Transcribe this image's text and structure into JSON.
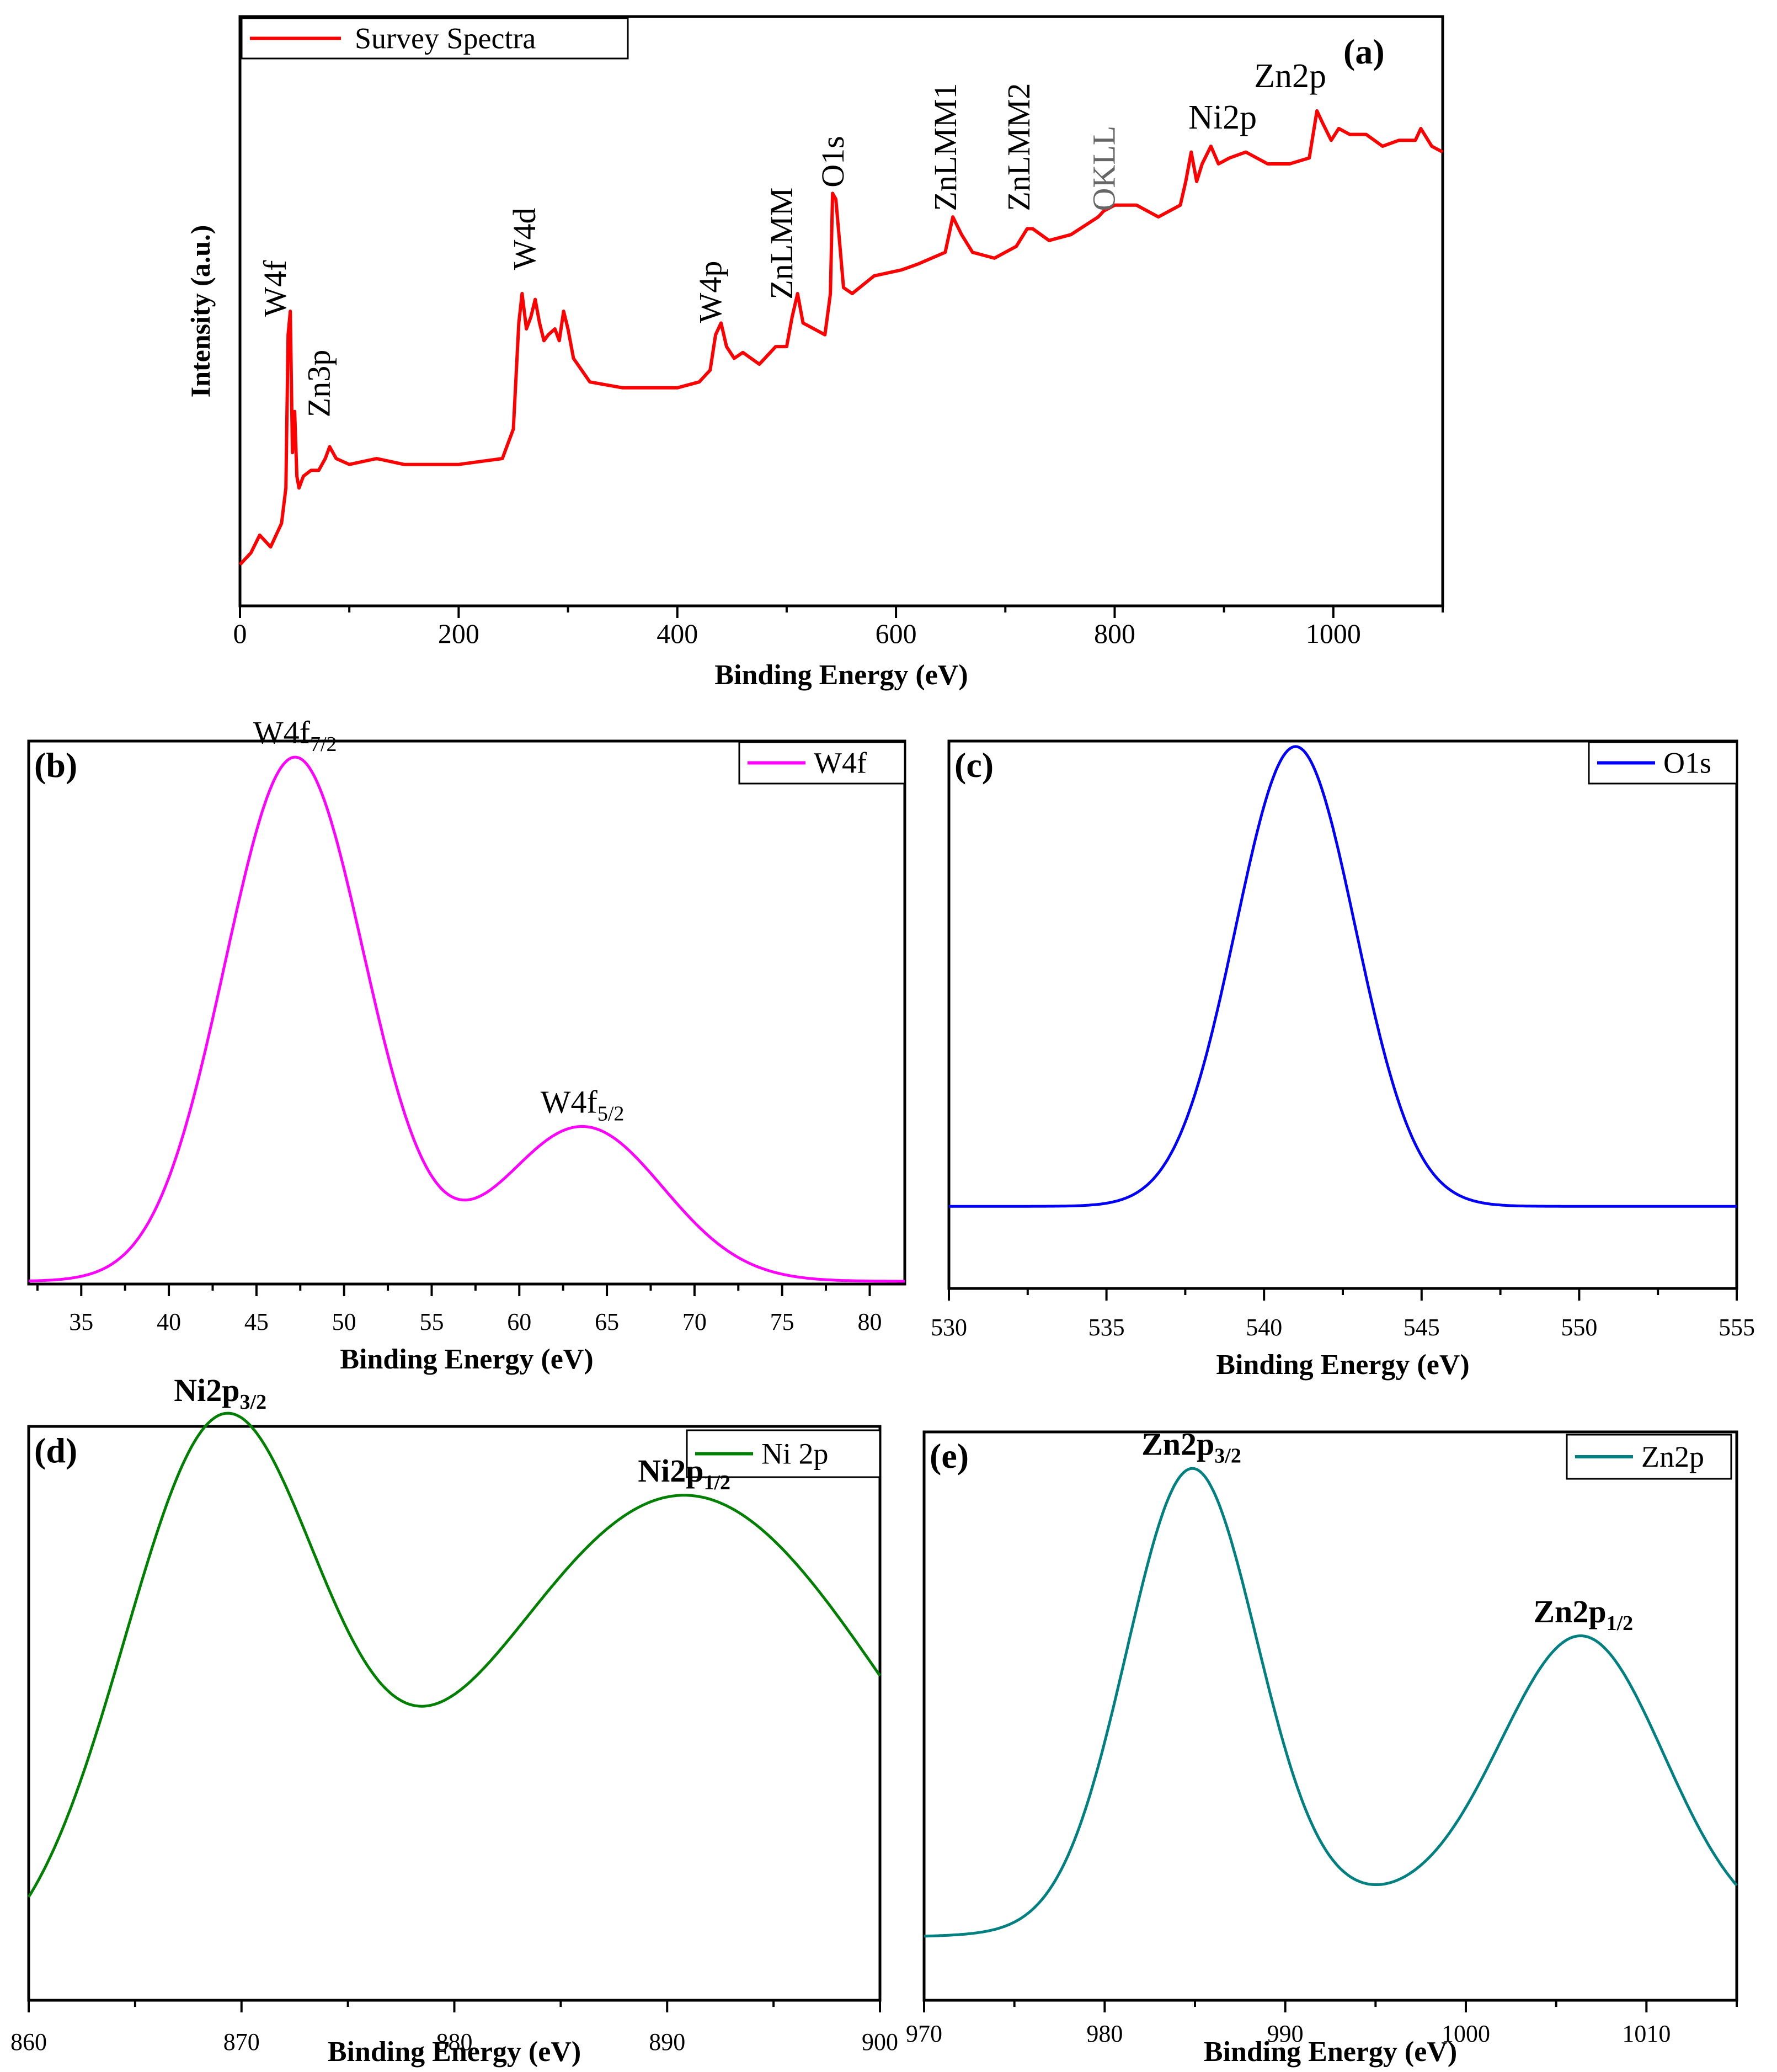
{
  "chart_data": [
    {
      "panel": "(a)",
      "type": "line",
      "title": "",
      "xlabel": "Binding Energy (eV)",
      "ylabel": "Intensity (a.u.)",
      "xlim": [
        0,
        1100
      ],
      "ylim": [
        0,
        1
      ],
      "xticks": [
        "0",
        "200",
        "400",
        "600",
        "800",
        "1000"
      ],
      "legend": {
        "label": "Survey Spectra",
        "position": "top-left"
      },
      "color": "#ff0000",
      "annotations": [
        {
          "text": "W4f",
          "x": 42,
          "y": 0.49,
          "rotate": true
        },
        {
          "text": "Zn3p",
          "x": 82,
          "y": 0.32,
          "rotate": true
        },
        {
          "text": "W4d",
          "x": 270,
          "y": 0.57,
          "rotate": true
        },
        {
          "text": "W4p",
          "x": 440,
          "y": 0.48,
          "rotate": true
        },
        {
          "text": "ZnLMM",
          "x": 505,
          "y": 0.52,
          "rotate": true
        },
        {
          "text": "O1s",
          "x": 552,
          "y": 0.71,
          "rotate": true
        },
        {
          "text": "ZnLMM1",
          "x": 655,
          "y": 0.67,
          "rotate": true
        },
        {
          "text": "ZnLMM2",
          "x": 722,
          "y": 0.67,
          "rotate": true
        },
        {
          "text": "OKLL",
          "x": 800,
          "y": 0.67,
          "rotate": true,
          "color": "#666666"
        },
        {
          "text": "Ni2p",
          "x": 870,
          "y": 0.81,
          "rotate": false
        },
        {
          "text": "Zn2p",
          "x": 930,
          "y": 0.88,
          "rotate": false
        }
      ],
      "x": [
        0,
        10,
        18,
        28,
        38,
        42,
        44,
        46,
        48,
        50,
        52,
        54,
        58,
        65,
        72,
        78,
        82,
        88,
        100,
        125,
        150,
        200,
        240,
        250,
        255,
        258,
        262,
        266,
        270,
        274,
        278,
        282,
        288,
        292,
        296,
        300,
        305,
        320,
        350,
        400,
        420,
        430,
        435,
        440,
        445,
        452,
        460,
        475,
        490,
        500,
        505,
        510,
        515,
        525,
        535,
        540,
        542,
        545,
        552,
        560,
        580,
        605,
        620,
        645,
        652,
        660,
        670,
        690,
        710,
        720,
        725,
        740,
        760,
        785,
        790,
        800,
        820,
        840,
        860,
        865,
        870,
        875,
        880,
        888,
        895,
        905,
        920,
        940,
        960,
        978,
        985,
        990,
        998,
        1005,
        1015,
        1030,
        1045,
        1060,
        1075,
        1080,
        1090,
        1100
      ],
      "y": [
        0.07,
        0.09,
        0.12,
        0.1,
        0.14,
        0.2,
        0.46,
        0.5,
        0.26,
        0.33,
        0.22,
        0.2,
        0.22,
        0.23,
        0.23,
        0.25,
        0.27,
        0.25,
        0.24,
        0.25,
        0.24,
        0.24,
        0.25,
        0.3,
        0.48,
        0.53,
        0.47,
        0.49,
        0.52,
        0.48,
        0.45,
        0.46,
        0.47,
        0.45,
        0.5,
        0.47,
        0.42,
        0.38,
        0.37,
        0.37,
        0.38,
        0.4,
        0.46,
        0.48,
        0.44,
        0.42,
        0.43,
        0.41,
        0.44,
        0.44,
        0.49,
        0.53,
        0.48,
        0.47,
        0.46,
        0.53,
        0.7,
        0.69,
        0.54,
        0.53,
        0.56,
        0.57,
        0.58,
        0.6,
        0.66,
        0.63,
        0.6,
        0.59,
        0.61,
        0.64,
        0.64,
        0.62,
        0.63,
        0.66,
        0.67,
        0.68,
        0.68,
        0.66,
        0.68,
        0.72,
        0.77,
        0.72,
        0.75,
        0.78,
        0.75,
        0.76,
        0.77,
        0.75,
        0.75,
        0.76,
        0.84,
        0.82,
        0.79,
        0.81,
        0.8,
        0.8,
        0.78,
        0.79,
        0.79,
        0.81,
        0.78,
        0.77
      ]
    },
    {
      "panel": "(b)",
      "type": "line",
      "title": "",
      "xlabel": "Binding Energy (eV)",
      "ylabel": "",
      "xlim": [
        32,
        82
      ],
      "ylim": [
        0,
        1
      ],
      "xticks": [
        "35",
        "40",
        "45",
        "50",
        "55",
        "60",
        "65",
        "70",
        "75",
        "80"
      ],
      "legend": {
        "label": "W4f",
        "position": "top-right"
      },
      "color": "#ff00ff",
      "peaks": [
        {
          "label": "W4f",
          "sub": "7/2",
          "center": 47.2,
          "height": 0.97
        },
        {
          "label": "W4f",
          "sub": "5/2",
          "center": 63.6,
          "height": 0.28
        }
      ]
    },
    {
      "panel": "(c)",
      "type": "line",
      "title": "",
      "xlabel": "Binding Energy (eV)",
      "ylabel": "",
      "xlim": [
        530,
        555
      ],
      "ylim": [
        0,
        1
      ],
      "xticks": [
        "530",
        "535",
        "540",
        "545",
        "550",
        "555"
      ],
      "legend": {
        "label": "O1s",
        "position": "top-right"
      },
      "color": "#0000ff",
      "peaks": [
        {
          "label": "",
          "center": 541.0,
          "height": 0.84,
          "baseline": 0.15
        }
      ]
    },
    {
      "panel": "(d)",
      "type": "line",
      "title": "",
      "xlabel": "Binding Energy (eV)",
      "ylabel": "",
      "xlim": [
        860,
        900
      ],
      "ylim": [
        0,
        1
      ],
      "xticks": [
        "860",
        "870",
        "880",
        "890",
        "900"
      ],
      "legend": {
        "label": "Ni 2p",
        "position": "top-right"
      },
      "color": "#008000",
      "peaks": [
        {
          "label": "Ni2p",
          "sub": "3/2",
          "center": 869.0,
          "height": 0.92
        },
        {
          "label": "Ni2p",
          "sub": "1/2",
          "center": 890.8,
          "height": 0.84
        }
      ]
    },
    {
      "panel": "(e)",
      "type": "line",
      "title": "",
      "xlabel": "Binding Energy (eV)",
      "ylabel": "",
      "xlim": [
        970,
        1015
      ],
      "ylim": [
        0,
        1
      ],
      "xticks": [
        "970",
        "980",
        "990",
        "1000",
        "1010"
      ],
      "legend": {
        "label": "Zn2p",
        "position": "top-right"
      },
      "color": "#008080",
      "peaks": [
        {
          "label": "Zn2p",
          "sub": "3/2",
          "center": 984.8,
          "height": 0.87
        },
        {
          "label": "Zn2p",
          "sub": "1/2",
          "center": 1006.5,
          "height": 0.58
        }
      ]
    }
  ]
}
